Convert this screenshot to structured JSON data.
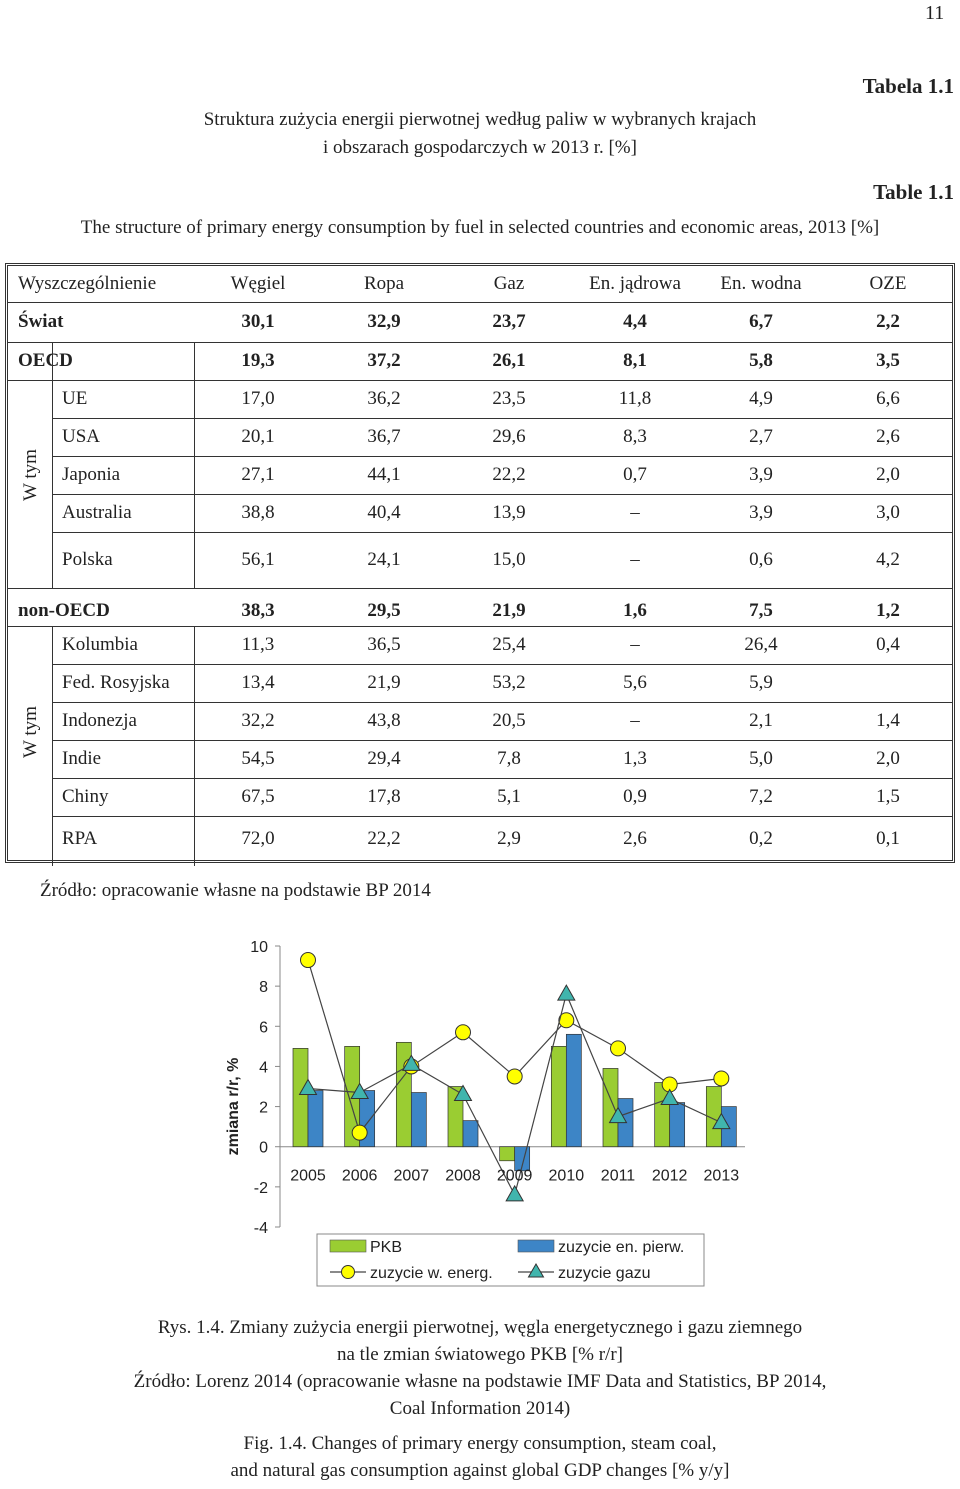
{
  "page_number": "11",
  "table_label_pl": "Tabela 1.1",
  "title_pl_line1": "Struktura zużycia energii pierwotnej według paliw w wybranych krajach",
  "title_pl_line2": "i obszarach gospodarczych w 2013 r. [%]",
  "table_label_en": "Table 1.1",
  "title_en": "The structure of primary energy consumption by fuel in selected countries and economic areas, 2013 [%]",
  "table": {
    "headers": [
      "Wyszczególnienie",
      "Węgiel",
      "Ropa",
      "Gaz",
      "En. jądrowa",
      "En. wodna",
      "OZE"
    ],
    "group_label": "W tym",
    "rows": [
      {
        "name": "Świat",
        "bold": true,
        "values": [
          "30,1",
          "32,9",
          "23,7",
          "4,4",
          "6,7",
          "2,2"
        ]
      },
      {
        "name": "OECD",
        "bold": true,
        "values": [
          "19,3",
          "37,2",
          "26,1",
          "8,1",
          "5,8",
          "3,5"
        ]
      },
      {
        "name": "UE",
        "values": [
          "17,0",
          "36,2",
          "23,5",
          "11,8",
          "4,9",
          "6,6"
        ]
      },
      {
        "name": "USA",
        "values": [
          "20,1",
          "36,7",
          "29,6",
          "8,3",
          "2,7",
          "2,6"
        ]
      },
      {
        "name": "Japonia",
        "values": [
          "27,1",
          "44,1",
          "22,2",
          "0,7",
          "3,9",
          "2,0"
        ]
      },
      {
        "name": "Australia",
        "values": [
          "38,8",
          "40,4",
          "13,9",
          "–",
          "3,9",
          "3,0"
        ]
      },
      {
        "name": "Polska",
        "values": [
          "56,1",
          "24,1",
          "15,0",
          "–",
          "0,6",
          "4,2"
        ]
      },
      {
        "name": "non-OECD",
        "bold": true,
        "values": [
          "38,3",
          "29,5",
          "21,9",
          "1,6",
          "7,5",
          "1,2"
        ]
      },
      {
        "name": "Kolumbia",
        "values": [
          "11,3",
          "36,5",
          "25,4",
          "–",
          "26,4",
          "0,4"
        ]
      },
      {
        "name": "Fed. Rosyjska",
        "values": [
          "13,4",
          "21,9",
          "53,2",
          "5,6",
          "5,9",
          ""
        ]
      },
      {
        "name": "Indonezja",
        "values": [
          "32,2",
          "43,8",
          "20,5",
          "–",
          "2,1",
          "1,4"
        ]
      },
      {
        "name": "Indie",
        "values": [
          "54,5",
          "29,4",
          "7,8",
          "1,3",
          "5,0",
          "2,0"
        ]
      },
      {
        "name": "Chiny",
        "values": [
          "67,5",
          "17,8",
          "5,1",
          "0,9",
          "7,2",
          "1,5"
        ]
      },
      {
        "name": "RPA",
        "values": [
          "72,0",
          "22,2",
          "2,9",
          "2,6",
          "0,2",
          "0,1"
        ]
      }
    ]
  },
  "source_table": "Źródło: opracowanie własne na podstawie BP 2014",
  "chart_data": {
    "type": "bar",
    "categories": [
      "2005",
      "2006",
      "2007",
      "2008",
      "2009",
      "2010",
      "2011",
      "2012",
      "2013"
    ],
    "ylabel": "zmiana r/r, %",
    "ylim": [
      -4,
      10
    ],
    "yticks": [
      10,
      8,
      6,
      4,
      2,
      0,
      -2,
      -4
    ],
    "grid": false,
    "legend_position": "bottom",
    "series": [
      {
        "name": "PKB",
        "kind": "bar",
        "color": "#9acd32",
        "values": [
          4.9,
          5.0,
          5.2,
          3.0,
          -0.7,
          5.0,
          3.9,
          3.2,
          3.0
        ]
      },
      {
        "name": "zuzycie en. pierw.",
        "kind": "bar",
        "color": "#3d85c6",
        "values": [
          2.8,
          2.8,
          2.7,
          1.3,
          -1.2,
          5.6,
          2.4,
          2.2,
          2.0
        ]
      },
      {
        "name": "zuzycie w. energ.",
        "kind": "line",
        "marker": "circle",
        "color": "#ffff00",
        "values": [
          9.3,
          0.7,
          4.0,
          5.7,
          3.5,
          6.3,
          4.9,
          3.1,
          3.4
        ]
      },
      {
        "name": "zuzycie gazu",
        "kind": "line",
        "marker": "triangle",
        "color": "#40b5ad",
        "values": [
          2.9,
          2.7,
          4.1,
          2.6,
          -2.4,
          7.6,
          1.5,
          2.4,
          1.2
        ]
      }
    ]
  },
  "fig_caption_pl_line1": "Rys. 1.4. Zmiany zużycia energii pierwotnej, węgla energetycznego i gazu ziemnego",
  "fig_caption_pl_line2": "na tle zmian światowego PKB [% r/r]",
  "fig_source_line1": "Źródło: Lorenz 2014 (opracowanie własne na podstawie IMF Data and Statistics, BP 2014,",
  "fig_source_line2": "Coal Information 2014)",
  "fig_caption_en_line1": "Fig. 1.4. Changes of primary energy consumption, steam coal,",
  "fig_caption_en_line2": "and natural gas consumption against global GDP changes [% y/y]"
}
